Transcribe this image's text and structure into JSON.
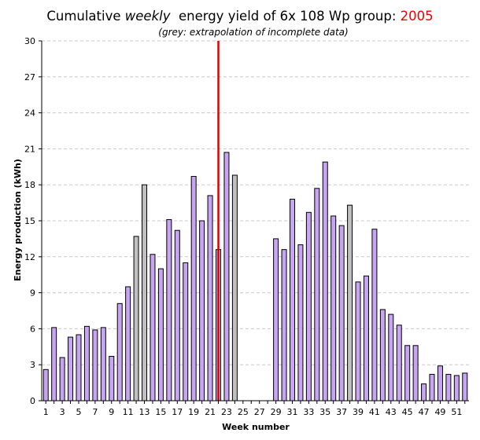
{
  "chart_data": {
    "type": "bar",
    "title_parts": {
      "prefix": "Cumulative ",
      "emphasis": "weekly",
      "middle": "  energy yield of 6x 108 Wp group: ",
      "year": "2005"
    },
    "subtitle": "(grey: extrapolation of incomplete data)",
    "xlabel": "Week number",
    "ylabel": "Energy production (kWh)",
    "ylim": [
      0,
      30
    ],
    "yticks": [
      0,
      3,
      6,
      9,
      12,
      15,
      18,
      21,
      24,
      27,
      30
    ],
    "xticks": [
      1,
      3,
      5,
      7,
      9,
      11,
      13,
      15,
      17,
      19,
      21,
      23,
      25,
      27,
      29,
      31,
      33,
      35,
      37,
      39,
      41,
      43,
      45,
      47,
      49,
      51
    ],
    "grid": true,
    "marker_week": 22,
    "colors": {
      "measured": "#c7a5f2",
      "extrapolated": "#c0c0c0",
      "marker": "#dd0000"
    },
    "bars": [
      {
        "week": 1,
        "value": 2.6,
        "grey": false
      },
      {
        "week": 2,
        "value": 6.1,
        "grey": false
      },
      {
        "week": 3,
        "value": 3.6,
        "grey": false
      },
      {
        "week": 4,
        "value": 5.3,
        "grey": false
      },
      {
        "week": 5,
        "value": 5.5,
        "grey": false
      },
      {
        "week": 6,
        "value": 6.2,
        "grey": false
      },
      {
        "week": 7,
        "value": 5.9,
        "grey": false
      },
      {
        "week": 8,
        "value": 6.1,
        "grey": false
      },
      {
        "week": 9,
        "value": 3.7,
        "grey": false
      },
      {
        "week": 10,
        "value": 8.1,
        "grey": false
      },
      {
        "week": 11,
        "value": 9.5,
        "grey": false
      },
      {
        "week": 12,
        "value": 13.7,
        "grey": true
      },
      {
        "week": 13,
        "value": 18.0,
        "grey": true
      },
      {
        "week": 14,
        "value": 12.2,
        "grey": false
      },
      {
        "week": 15,
        "value": 11.0,
        "grey": false
      },
      {
        "week": 16,
        "value": 15.1,
        "grey": false
      },
      {
        "week": 17,
        "value": 14.2,
        "grey": false
      },
      {
        "week": 18,
        "value": 11.5,
        "grey": false
      },
      {
        "week": 19,
        "value": 18.7,
        "grey": false
      },
      {
        "week": 20,
        "value": 15.0,
        "grey": false
      },
      {
        "week": 21,
        "value": 17.1,
        "grey": false
      },
      {
        "week": 22,
        "value": 12.6,
        "grey": false
      },
      {
        "week": 23,
        "value": 20.7,
        "grey": false
      },
      {
        "week": 24,
        "value": 18.8,
        "grey": true
      },
      {
        "week": 25,
        "value": 0,
        "grey": false
      },
      {
        "week": 26,
        "value": 0,
        "grey": false
      },
      {
        "week": 27,
        "value": 0,
        "grey": false
      },
      {
        "week": 28,
        "value": 0,
        "grey": false
      },
      {
        "week": 29,
        "value": 13.5,
        "grey": false
      },
      {
        "week": 30,
        "value": 12.6,
        "grey": false
      },
      {
        "week": 31,
        "value": 16.8,
        "grey": false
      },
      {
        "week": 32,
        "value": 13.0,
        "grey": false
      },
      {
        "week": 33,
        "value": 15.7,
        "grey": false
      },
      {
        "week": 34,
        "value": 17.7,
        "grey": false
      },
      {
        "week": 35,
        "value": 19.9,
        "grey": false
      },
      {
        "week": 36,
        "value": 15.4,
        "grey": false
      },
      {
        "week": 37,
        "value": 14.6,
        "grey": false
      },
      {
        "week": 38,
        "value": 16.3,
        "grey": true
      },
      {
        "week": 39,
        "value": 9.9,
        "grey": false
      },
      {
        "week": 40,
        "value": 10.4,
        "grey": false
      },
      {
        "week": 41,
        "value": 14.3,
        "grey": false
      },
      {
        "week": 42,
        "value": 7.6,
        "grey": false
      },
      {
        "week": 43,
        "value": 7.2,
        "grey": false
      },
      {
        "week": 44,
        "value": 6.3,
        "grey": false
      },
      {
        "week": 45,
        "value": 4.6,
        "grey": false
      },
      {
        "week": 46,
        "value": 4.6,
        "grey": false
      },
      {
        "week": 47,
        "value": 1.4,
        "grey": false
      },
      {
        "week": 48,
        "value": 2.2,
        "grey": false
      },
      {
        "week": 49,
        "value": 2.9,
        "grey": false
      },
      {
        "week": 50,
        "value": 2.2,
        "grey": false
      },
      {
        "week": 51,
        "value": 2.1,
        "grey": false
      },
      {
        "week": 52,
        "value": 2.3,
        "grey": false
      }
    ]
  }
}
